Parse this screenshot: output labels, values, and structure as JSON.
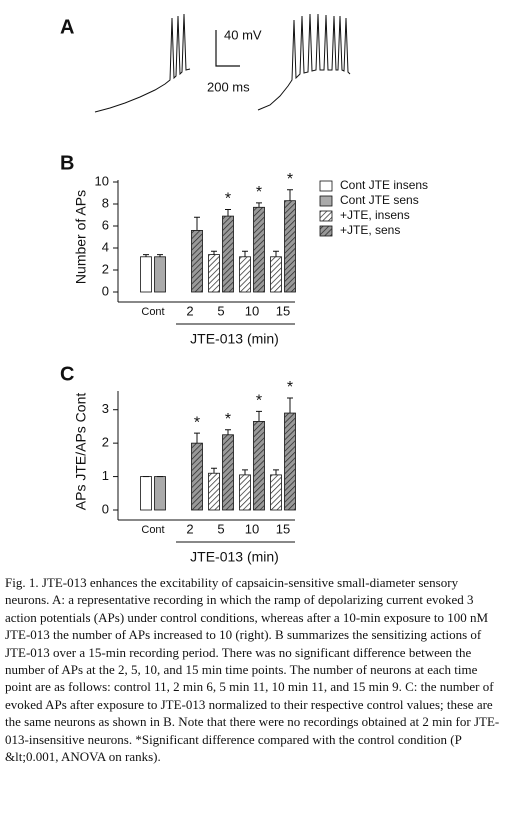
{
  "panel_a": {
    "label": "A",
    "scale_voltage": "40 mV",
    "scale_time": "200 ms"
  },
  "chart_data": [
    {
      "type": "bar",
      "label": "B",
      "ylabel": "Number of APs",
      "xlabel": "JTE-013 (min)",
      "categories": [
        "Cont",
        "2",
        "5",
        "10",
        "15"
      ],
      "series": [
        {
          "name": "Cont JTE insens",
          "color": "#ffffff",
          "hatch": false,
          "values": [
            3.2,
            null,
            null,
            null,
            null
          ],
          "errors": [
            0.2,
            null,
            null,
            null,
            null
          ]
        },
        {
          "name": "Cont JTE sens",
          "color": "#aaaaaa",
          "hatch": false,
          "values": [
            3.2,
            null,
            null,
            null,
            null
          ],
          "errors": [
            0.2,
            null,
            null,
            null,
            null
          ]
        },
        {
          "name": "+JTE, insens",
          "color": "#ffffff",
          "hatch": true,
          "values": [
            null,
            null,
            3.4,
            3.2,
            3.2
          ],
          "errors": [
            null,
            null,
            0.3,
            0.5,
            0.5
          ]
        },
        {
          "name": "+JTE, sens",
          "color": "#999999",
          "hatch": true,
          "values": [
            null,
            5.6,
            6.9,
            7.7,
            8.3
          ],
          "errors": [
            null,
            1.2,
            0.6,
            0.4,
            1.0
          ]
        }
      ],
      "annotations": [
        null,
        null,
        "*",
        "*",
        "*"
      ],
      "ylim": [
        0,
        10
      ],
      "yticks": [
        0,
        2,
        4,
        6,
        8,
        10
      ],
      "legend": true
    },
    {
      "type": "bar",
      "label": "C",
      "ylabel": "APs JTE/APs Cont",
      "xlabel": "JTE-013 (min)",
      "categories": [
        "Cont",
        "2",
        "5",
        "10",
        "15"
      ],
      "series": [
        {
          "color": "#ffffff",
          "hatch": false,
          "values": [
            1,
            null,
            null,
            null,
            null
          ],
          "errors": [
            0,
            null,
            null,
            null,
            null
          ]
        },
        {
          "color": "#aaaaaa",
          "hatch": false,
          "values": [
            1,
            null,
            null,
            null,
            null
          ],
          "errors": [
            0,
            null,
            null,
            null,
            null
          ]
        },
        {
          "color": "#ffffff",
          "hatch": true,
          "values": [
            null,
            null,
            1.1,
            1.05,
            1.05
          ],
          "errors": [
            null,
            null,
            0.15,
            0.15,
            0.15
          ]
        },
        {
          "color": "#999999",
          "hatch": true,
          "values": [
            null,
            2.0,
            2.25,
            2.65,
            2.9
          ],
          "errors": [
            null,
            0.3,
            0.15,
            0.3,
            0.45
          ]
        }
      ],
      "annotations": [
        null,
        "*",
        "*",
        "*",
        "*"
      ],
      "ylim": [
        0,
        3.5
      ],
      "yticks": [
        0,
        1,
        2,
        3
      ],
      "legend": false
    }
  ],
  "caption": "Fig. 1. JTE-013 enhances the excitability of capsaicin-sensitive small-diameter sensory neurons. A: a representative recording in which the ramp of depolarizing current evoked 3 action potentials (APs) under control conditions, whereas after a 10-min exposure to 100 nM JTE-013 the number of APs increased to 10 (right). B summarizes the sensitizing actions of JTE-013 over a 15-min recording period. There was no significant difference between the number of APs at the 2, 5, 10, and 15 min time points. The number of neurons at each time point are as follows: control 11, 2 min 6, 5 min 11, 10 min 11, and 15 min 9. C: the number of evoked APs after exposure to JTE-013 normalized to their respective control values; these are the same neurons as shown in B. Note that there were no recordings obtained at 2 min for JTE-013-insensitive neurons. *Significant difference compared with the control condition (P &lt;0.001, ANOVA on ranks)."
}
